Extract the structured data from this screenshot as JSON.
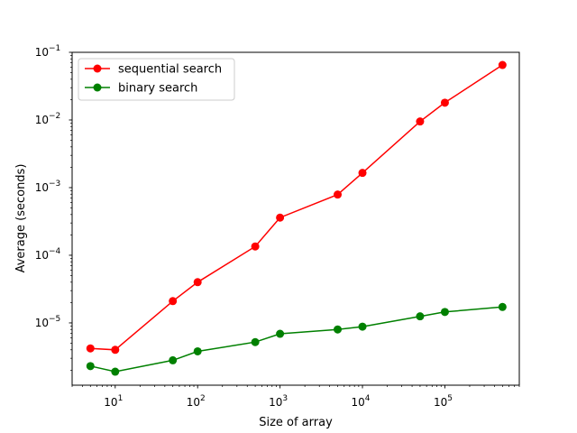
{
  "chart_data": {
    "type": "line",
    "xscale": "log",
    "yscale": "log",
    "xlabel": "Size of array",
    "ylabel": "Average (seconds)",
    "xlim": [
      3,
      800000
    ],
    "ylim": [
      1.2e-06,
      0.1
    ],
    "grid": false,
    "legend_position": "top-left",
    "x_ticks": [
      {
        "value": 10,
        "base": "10",
        "exp": "1"
      },
      {
        "value": 100,
        "base": "10",
        "exp": "2"
      },
      {
        "value": 1000,
        "base": "10",
        "exp": "3"
      },
      {
        "value": 10000,
        "base": "10",
        "exp": "4"
      },
      {
        "value": 100000,
        "base": "10",
        "exp": "5"
      }
    ],
    "y_ticks": [
      {
        "value": 1e-05,
        "base": "10",
        "exp": "−5"
      },
      {
        "value": 0.0001,
        "base": "10",
        "exp": "−4"
      },
      {
        "value": 0.001,
        "base": "10",
        "exp": "−3"
      },
      {
        "value": 0.01,
        "base": "10",
        "exp": "−2"
      },
      {
        "value": 0.1,
        "base": "10",
        "exp": "−1"
      }
    ],
    "series": [
      {
        "name": "sequential search",
        "color": "#ff0000",
        "x": [
          5,
          10,
          50,
          100,
          500,
          1000,
          5000,
          10000,
          50000,
          100000,
          500000
        ],
        "y": [
          4.2e-06,
          4e-06,
          2.1e-05,
          4e-05,
          0.000135,
          0.00036,
          0.00079,
          0.00165,
          0.0095,
          0.018,
          0.065
        ]
      },
      {
        "name": "binary search",
        "color": "#008000",
        "x": [
          5,
          10,
          50,
          100,
          500,
          1000,
          5000,
          10000,
          50000,
          100000,
          500000
        ],
        "y": [
          2.3e-06,
          1.9e-06,
          2.8e-06,
          3.8e-06,
          5.2e-06,
          6.9e-06,
          8e-06,
          8.8e-06,
          1.25e-05,
          1.45e-05,
          1.72e-05
        ]
      }
    ]
  }
}
